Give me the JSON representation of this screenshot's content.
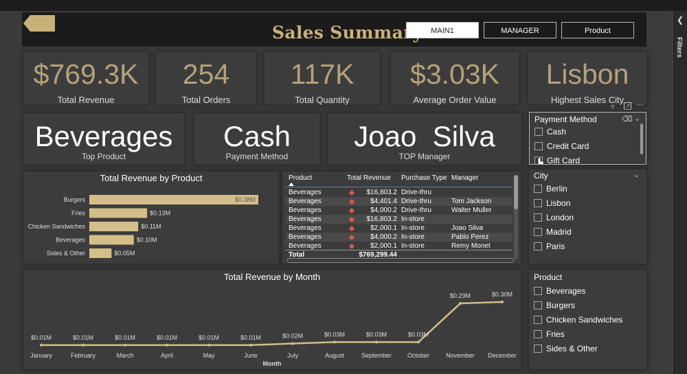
{
  "header": {
    "title": "Sales Summary",
    "nav": [
      {
        "label": "MAIN1",
        "active": true
      },
      {
        "label": "MANAGER",
        "active": false
      },
      {
        "label": "Product",
        "active": false
      }
    ]
  },
  "filters_pane": {
    "label": "Filters"
  },
  "kpis": [
    {
      "value": "$769.3K",
      "label": "Total Revenue"
    },
    {
      "value": "254",
      "label": "Total Orders"
    },
    {
      "value": "117K",
      "label": "Total Quantity"
    },
    {
      "value": "$3.03K",
      "label": "Average Order Value"
    },
    {
      "value": "Lisbon",
      "label": "Highest Sales City"
    }
  ],
  "highlights": [
    {
      "value": "Beverages",
      "label": "Top Product"
    },
    {
      "value": "Cash",
      "label": "Payment Method"
    },
    {
      "value": "Joao  Silva",
      "label": "TOP Manager"
    }
  ],
  "bar_chart": {
    "title": "Total Revenue by Product",
    "bar_labels": [
      "$0.38M",
      "$0.13M",
      "$0.11M",
      "$0.10M",
      "$0.05M"
    ]
  },
  "table": {
    "columns": [
      "Product",
      "Total Revenue",
      "Purchase Type",
      "Manager"
    ],
    "rows": [
      {
        "product": "Beverages",
        "revenue": "$16,803.2",
        "type": "Drive-thru",
        "manager": ""
      },
      {
        "product": "Beverages",
        "revenue": "$4,401.4",
        "type": "Drive-thru",
        "manager": "Tom Jackson"
      },
      {
        "product": "Beverages",
        "revenue": "$4,000.2",
        "type": "Drive-thru",
        "manager": "Walter Muller"
      },
      {
        "product": "Beverages",
        "revenue": "$16,803.2",
        "type": "In-store",
        "manager": ""
      },
      {
        "product": "Beverages",
        "revenue": "$2,000.1",
        "type": "In-store",
        "manager": "Joao Silva"
      },
      {
        "product": "Beverages",
        "revenue": "$4,000.2",
        "type": "In-store",
        "manager": "Pablo Perez"
      },
      {
        "product": "Beverages",
        "revenue": "$2,000.1",
        "type": "In-store",
        "manager": "Remy Monet"
      }
    ],
    "total_label": "Total",
    "total_value": "$769,299.44"
  },
  "line_chart": {
    "title": "Total Revenue by Month",
    "xlabel": "Month",
    "point_labels": [
      "$0.01M",
      "$0.01M",
      "$0.01M",
      "$0.01M",
      "$0.01M",
      "$0.01M",
      "$0.02M",
      "$0.03M",
      "$0.03M",
      "$0.03M",
      "$0.29M",
      "$0.30M"
    ]
  },
  "slicers": {
    "payment": {
      "title": "Payment Method",
      "options": [
        "Cash",
        "Credit Card",
        "Gift Card"
      ]
    },
    "city": {
      "title": "City",
      "options": [
        "Berlin",
        "Lisbon",
        "London",
        "Madrid",
        "Paris"
      ]
    },
    "product": {
      "title": "Product",
      "options": [
        "Beverages",
        "Burgers",
        "Chicken Sandwiches",
        "Fries",
        "Sides & Other"
      ]
    }
  },
  "colors": {
    "gold": "#c9b27a",
    "bar": "#d4bf8a",
    "diamond": "#e05a4f",
    "bg": "#3b3b3b"
  },
  "chart_data": [
    {
      "type": "bar",
      "title": "Total Revenue by Product",
      "categories": [
        "Burgers",
        "Fries",
        "Chicken Sandwiches",
        "Beverages",
        "Sides & Other"
      ],
      "values": [
        0.38,
        0.13,
        0.11,
        0.1,
        0.05
      ]
    },
    {
      "type": "line",
      "title": "Total Revenue by Month",
      "xlabel": "Month",
      "categories": [
        "January",
        "February",
        "March",
        "April",
        "May",
        "June",
        "July",
        "August",
        "September",
        "October",
        "November",
        "December"
      ],
      "values": [
        0.01,
        0.01,
        0.01,
        0.01,
        0.01,
        0.01,
        0.02,
        0.03,
        0.03,
        0.03,
        0.29,
        0.3
      ]
    }
  ]
}
